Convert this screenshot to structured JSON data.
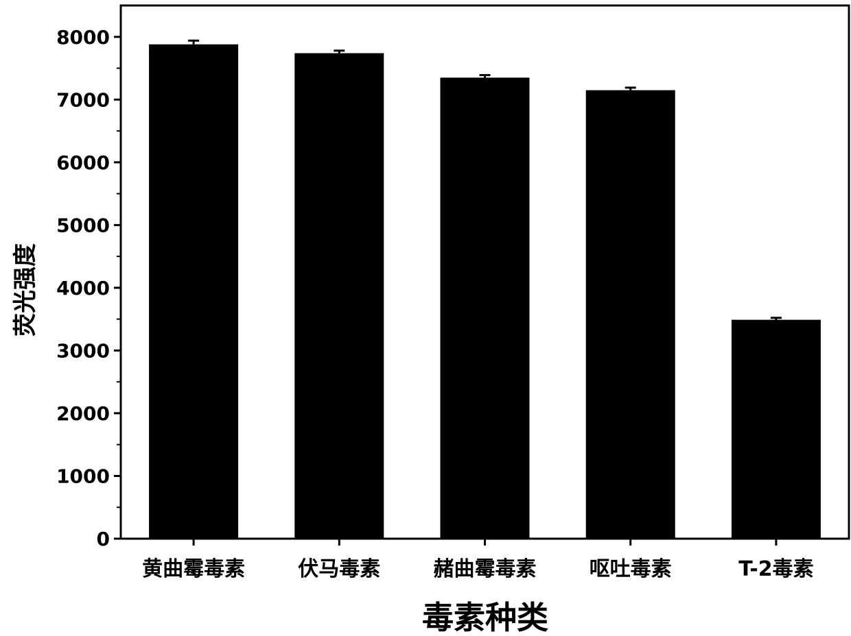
{
  "chart_data": {
    "type": "bar",
    "xlabel": "毒素种类",
    "ylabel": "荧光强度",
    "categories": [
      "黄曲霉毒素",
      "伏马毒素",
      "赭曲霉毒素",
      "呕吐毒素",
      "T-2毒素"
    ],
    "values": [
      7880,
      7740,
      7350,
      7150,
      3490
    ],
    "errors": [
      60,
      40,
      40,
      40,
      30
    ],
    "ylim": [
      0,
      8500
    ],
    "yticks": [
      0,
      1000,
      2000,
      3000,
      4000,
      5000,
      6000,
      7000,
      8000
    ],
    "ytick_labels": [
      "0",
      "1000",
      "2000",
      "3000",
      "4000",
      "5000",
      "6000",
      "7000",
      "8000"
    ],
    "bar_color": "#000000",
    "grid": false,
    "legend": "none"
  }
}
